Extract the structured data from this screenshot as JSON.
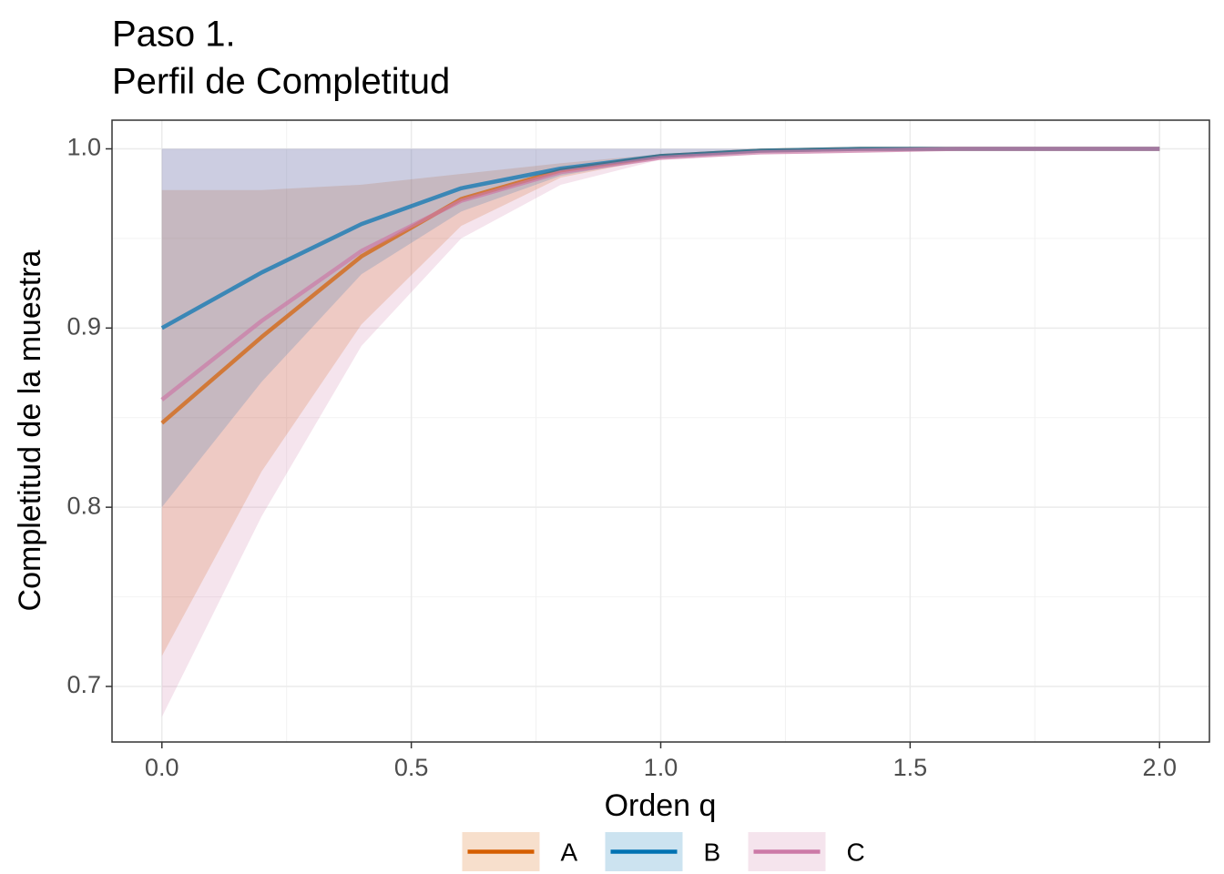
{
  "chart_data": {
    "type": "line",
    "title": [
      "Paso 1.",
      "Perfil de Completitud"
    ],
    "x_label": "Orden q",
    "y_label": "Completitud de la muestra",
    "x": [
      0,
      0.2,
      0.4,
      0.6,
      0.8,
      1.0,
      1.2,
      1.4,
      1.6,
      1.8,
      2.0
    ],
    "series": [
      {
        "name": "A",
        "color": "#D55E00",
        "values": [
          0.847,
          0.895,
          0.94,
          0.972,
          0.988,
          0.996,
          0.999,
          1.0,
          1.0,
          1.0,
          1.0
        ],
        "lower": [
          0.717,
          0.82,
          0.902,
          0.957,
          0.984,
          0.995,
          0.999,
          1.0,
          1.0,
          1.0,
          1.0
        ],
        "upper": [
          0.977,
          0.977,
          0.98,
          0.986,
          0.992,
          0.997,
          1.0,
          1.0,
          1.0,
          1.0,
          1.0
        ]
      },
      {
        "name": "B",
        "color": "#0072B2",
        "values": [
          0.9,
          0.931,
          0.958,
          0.978,
          0.989,
          0.996,
          0.999,
          1.0,
          1.0,
          1.0,
          1.0
        ],
        "lower": [
          0.8,
          0.87,
          0.93,
          0.965,
          0.985,
          0.995,
          0.999,
          1.0,
          1.0,
          1.0,
          1.0
        ],
        "upper": [
          1.0,
          1.0,
          1.0,
          1.0,
          1.0,
          1.0,
          1.0,
          1.0,
          1.0,
          1.0,
          1.0
        ]
      },
      {
        "name": "C",
        "color": "#CC79A7",
        "values": [
          0.86,
          0.904,
          0.943,
          0.971,
          0.987,
          0.995,
          0.998,
          0.999,
          1.0,
          1.0,
          1.0
        ],
        "lower": [
          0.683,
          0.795,
          0.89,
          0.95,
          0.98,
          0.994,
          0.998,
          0.999,
          1.0,
          1.0,
          1.0
        ],
        "upper": [
          1.0,
          1.0,
          1.0,
          1.0,
          1.0,
          1.0,
          1.0,
          1.0,
          1.0,
          1.0,
          1.0
        ]
      }
    ],
    "xlim": [
      -0.1,
      2.1
    ],
    "ylim": [
      0.669,
      1.016
    ],
    "xticks": [
      {
        "value": 0,
        "label": "0.0"
      },
      0.5,
      {
        "value": 1,
        "label": "1.0"
      },
      1.5,
      {
        "value": 2,
        "label": "2.0"
      }
    ],
    "yticks": [
      0.7,
      0.8,
      0.9,
      {
        "value": 1,
        "label": "1.0"
      }
    ],
    "grid": true,
    "legend_position": "bottom"
  }
}
